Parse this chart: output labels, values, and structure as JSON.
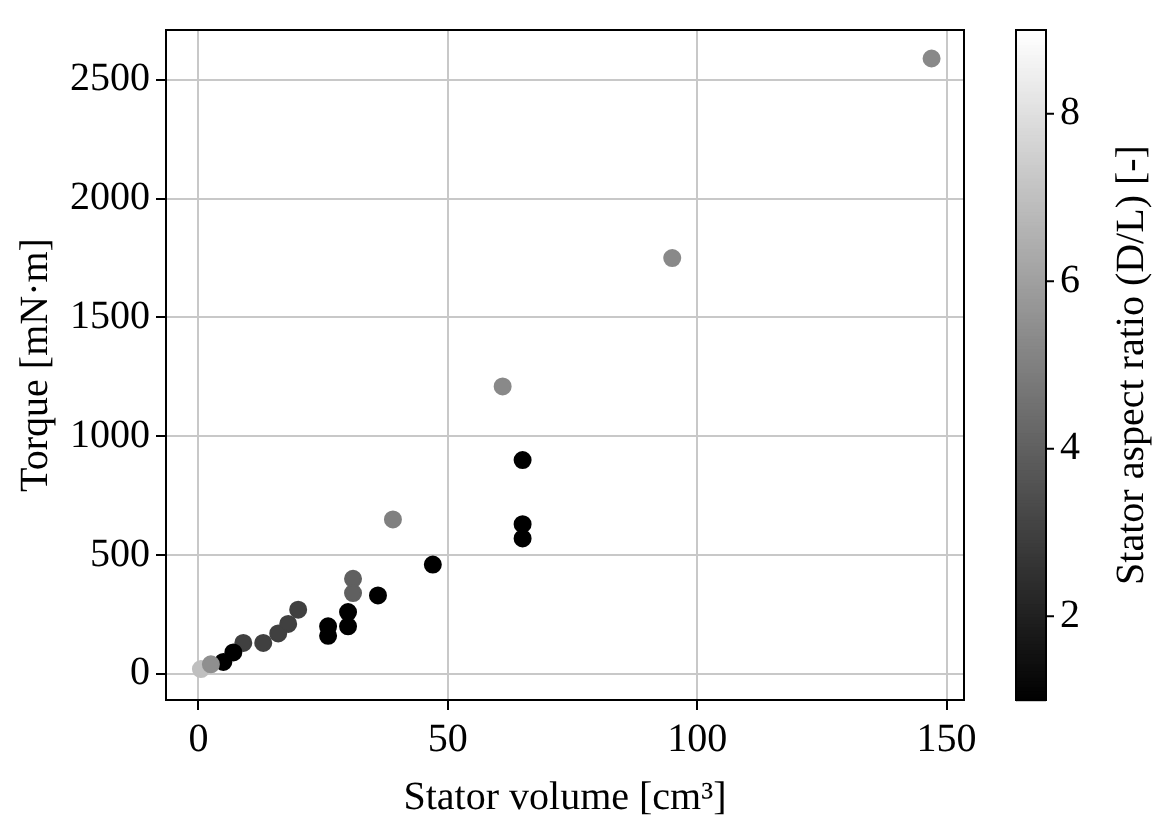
{
  "chart_data": {
    "type": "scatter",
    "xlabel": "Stator volume [cm³]",
    "ylabel": "Torque [mN·m]",
    "clabel": "Stator aspect ratio (D/L) [-]",
    "x": [
      147,
      95,
      61,
      65,
      65,
      65,
      39,
      47,
      36,
      31,
      31,
      30,
      30,
      26,
      26,
      20,
      18,
      16,
      13,
      9,
      7,
      5,
      0.5,
      2.5
    ],
    "values": [
      2590,
      1750,
      1210,
      900,
      630,
      570,
      650,
      460,
      330,
      400,
      340,
      260,
      200,
      200,
      160,
      270,
      210,
      170,
      130,
      130,
      90,
      50,
      20,
      40
    ],
    "cvalues": [
      5.3,
      5.3,
      5.3,
      1,
      1,
      1,
      5,
      1,
      1,
      4,
      4,
      1,
      1,
      1,
      1,
      3,
      3,
      3,
      3,
      3,
      1,
      1,
      7,
      5.5
    ],
    "clim": [
      1,
      9
    ],
    "cticks": [
      2,
      4,
      6,
      8
    ],
    "xlim": [
      -6.5,
      153.5
    ],
    "ylim": [
      -110,
      2710
    ],
    "xticks": [
      0,
      50,
      100,
      150
    ],
    "yticks": [
      0,
      500,
      1000,
      1500,
      2000,
      2500
    ],
    "grid": true,
    "marker": "circle",
    "legend": false
  }
}
